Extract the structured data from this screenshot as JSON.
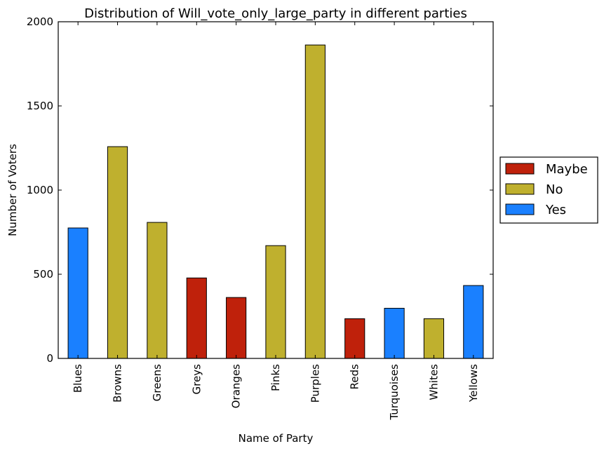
{
  "chart_data": {
    "type": "bar",
    "title": "Distribution of Will_vote_only_large_party in different parties",
    "xlabel": "Name of Party",
    "ylabel": "Number of Voters",
    "ylim": [
      0,
      2000
    ],
    "yticks": [
      "0",
      "500",
      "1000",
      "1500",
      "2000"
    ],
    "grid": false,
    "legend_position": "right",
    "categories": [
      "Blues",
      "Browns",
      "Greens",
      "Greys",
      "Oranges",
      "Pinks",
      "Purples",
      "Reds",
      "Turquoises",
      "Whites",
      "Yellows"
    ],
    "values": [
      775,
      1258,
      808,
      478,
      362,
      670,
      1862,
      236,
      298,
      236,
      433
    ],
    "bar_labels": [
      "Yes",
      "No",
      "No",
      "Maybe",
      "Maybe",
      "No",
      "No",
      "Maybe",
      "Yes",
      "No",
      "Yes"
    ],
    "legend": [
      {
        "label": "Maybe",
        "color": "#bf210b"
      },
      {
        "label": "No",
        "color": "#bfb02e"
      },
      {
        "label": "Yes",
        "color": "#1a80ff"
      }
    ]
  }
}
